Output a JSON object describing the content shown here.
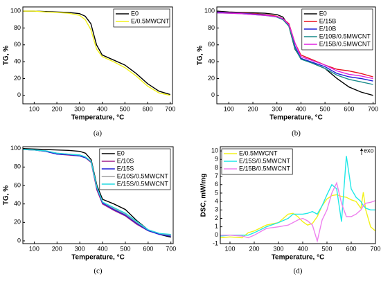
{
  "chart_data": [
    {
      "type": "line",
      "caption": "(a)",
      "x_label": "Temperature, °C",
      "y_label": "TG, %",
      "legend": "upper right",
      "xlim": [
        50,
        710
      ],
      "xticks": [
        100,
        200,
        300,
        400,
        500,
        600,
        700
      ],
      "ylim": [
        -10,
        105
      ],
      "yticks": [
        0,
        20,
        40,
        60,
        80,
        100
      ],
      "x": [
        50,
        100,
        150,
        200,
        250,
        300,
        325,
        350,
        375,
        400,
        450,
        500,
        550,
        600,
        650,
        700
      ],
      "series": [
        {
          "name": "E0",
          "color": "#000000",
          "values": [
            100,
            100,
            99.5,
            99,
            98.5,
            97,
            94,
            85,
            60,
            48,
            42,
            36,
            26,
            14,
            5,
            1
          ]
        },
        {
          "name": "E/0.5MWCNT",
          "color": "#f2f21a",
          "values": [
            100,
            100,
            99,
            98.5,
            97.5,
            95,
            90,
            78,
            55,
            46,
            40,
            33,
            23,
            11,
            3,
            0
          ]
        }
      ]
    },
    {
      "type": "line",
      "caption": "(b)",
      "x_label": "Temperature, °C",
      "y_label": "TG, %",
      "legend": "upper right",
      "xlim": [
        50,
        710
      ],
      "xticks": [
        100,
        200,
        300,
        400,
        500,
        600,
        700
      ],
      "ylim": [
        -10,
        105
      ],
      "yticks": [
        0,
        20,
        40,
        60,
        80,
        100
      ],
      "x": [
        50,
        100,
        150,
        200,
        250,
        300,
        325,
        350,
        375,
        400,
        450,
        500,
        550,
        600,
        650,
        700
      ],
      "series": [
        {
          "name": "E0",
          "color": "#000000",
          "values": [
            100,
            99,
            98.5,
            98,
            97.5,
            96,
            93,
            82,
            55,
            44,
            38,
            32,
            20,
            10,
            4,
            0
          ]
        },
        {
          "name": "E/15B",
          "color": "#e8141e",
          "values": [
            99,
            98.5,
            98,
            97,
            96,
            94,
            91,
            85,
            62,
            48,
            42,
            36,
            31,
            29,
            26,
            22
          ]
        },
        {
          "name": "E/10B",
          "color": "#1c1cd6",
          "values": [
            99,
            98,
            97.5,
            96.5,
            95.5,
            93,
            90,
            83,
            58,
            44,
            39,
            34,
            26,
            22,
            20,
            17
          ]
        },
        {
          "name": "E/10B/0.5MWCNT",
          "color": "#168a8a",
          "values": [
            98,
            97.5,
            97,
            96,
            95,
            93,
            90,
            82,
            56,
            43,
            38,
            32,
            24,
            19,
            16,
            13
          ]
        },
        {
          "name": "E/15B/0.5MWCNT",
          "color": "#e020e0",
          "values": [
            98,
            97.5,
            97,
            96,
            95,
            93.5,
            91,
            84,
            62,
            46,
            41,
            36,
            29,
            25,
            23,
            20
          ]
        }
      ]
    },
    {
      "type": "line",
      "caption": "(c)",
      "x_label": "Temperature, °C",
      "y_label": "TG, %",
      "legend": "upper right",
      "xlim": [
        50,
        710
      ],
      "xticks": [
        100,
        200,
        300,
        400,
        500,
        600,
        700
      ],
      "ylim": [
        -3,
        102
      ],
      "yticks": [
        0,
        20,
        40,
        60,
        80,
        100
      ],
      "x": [
        50,
        100,
        150,
        200,
        250,
        300,
        325,
        350,
        375,
        400,
        450,
        500,
        550,
        600,
        650,
        700
      ],
      "series": [
        {
          "name": "E0",
          "color": "#000000",
          "values": [
            100,
            99.5,
            99,
            98.5,
            98,
            97,
            95,
            88,
            60,
            45,
            40,
            34,
            22,
            12,
            7,
            4
          ]
        },
        {
          "name": "E/10S",
          "color": "#a0208c",
          "values": [
            99,
            98.5,
            97,
            94,
            93,
            92,
            90,
            85,
            55,
            40,
            33,
            27,
            18,
            11,
            7,
            6
          ]
        },
        {
          "name": "E/15S",
          "color": "#1c1cd6",
          "values": [
            99,
            98.5,
            97,
            94,
            93.5,
            92,
            90,
            86,
            57,
            41,
            34,
            28,
            19,
            11,
            7,
            5
          ]
        },
        {
          "name": "E/10S/0.5MWCNT",
          "color": "#a0a0a0",
          "values": [
            99,
            98.5,
            97.5,
            95,
            94,
            93,
            91,
            86,
            58,
            42,
            35,
            29,
            20,
            12,
            8,
            6
          ]
        },
        {
          "name": "E/15S/0.5MWCNT",
          "color": "#20d8e0",
          "values": [
            99,
            98.5,
            97.5,
            95,
            94,
            93,
            91,
            86,
            58,
            42,
            36,
            30,
            21,
            12,
            8,
            7
          ]
        }
      ]
    },
    {
      "type": "line",
      "caption": "(d)",
      "x_label": "Temperature, °C",
      "y_label": "DSC, mW/mg",
      "legend": "upper left",
      "annotation": "exo",
      "xlim": [
        60,
        700
      ],
      "xticks": [
        100,
        200,
        300,
        400,
        500,
        600,
        700
      ],
      "ylim": [
        -1,
        10.5
      ],
      "yticks": [
        -1,
        0,
        1,
        2,
        3,
        4,
        5,
        6,
        7,
        8,
        9,
        10
      ],
      "x": [
        60,
        100,
        150,
        175,
        200,
        250,
        300,
        340,
        360,
        380,
        400,
        420,
        440,
        460,
        480,
        500,
        520,
        540,
        560,
        580,
        600,
        620,
        640,
        650,
        660,
        680,
        700
      ],
      "series": [
        {
          "name": "E/0.5MWCNT",
          "color": "#f2f21a",
          "values": [
            -0.3,
            -0.2,
            -0.3,
            0.3,
            0.5,
            1.2,
            1.5,
            2.5,
            2.6,
            2.2,
            1.6,
            1.2,
            1.4,
            2.2,
            3.5,
            4.3,
            4.7,
            4.8,
            4.6,
            4.5,
            4.2,
            4.0,
            3.2,
            5.1,
            3,
            1.0,
            0.5
          ]
        },
        {
          "name": "E/15S/0.5MWCNT",
          "color": "#20e8e8",
          "values": [
            -0.1,
            0,
            0,
            0,
            0.3,
            1,
            1.5,
            2.0,
            2.5,
            2.5,
            2.5,
            2.6,
            2.8,
            2.5,
            3.5,
            4.8,
            6.0,
            5.5,
            1.6,
            9.4,
            5.5,
            4.5,
            4.0,
            3.5,
            3.2,
            3.0,
            3.0
          ]
        },
        {
          "name": "E/15B/0.5MWCNT",
          "color": "#ee80ee",
          "values": [
            0,
            0,
            -0.1,
            -0.3,
            0,
            0.8,
            1.0,
            1.2,
            1.5,
            1.8,
            2.0,
            1.7,
            1.2,
            -0.7,
            1.8,
            3.0,
            5.0,
            6.2,
            3.8,
            2.2,
            2.2,
            2.5,
            3.0,
            3.5,
            3.8,
            3.9,
            4.1
          ]
        }
      ]
    }
  ]
}
